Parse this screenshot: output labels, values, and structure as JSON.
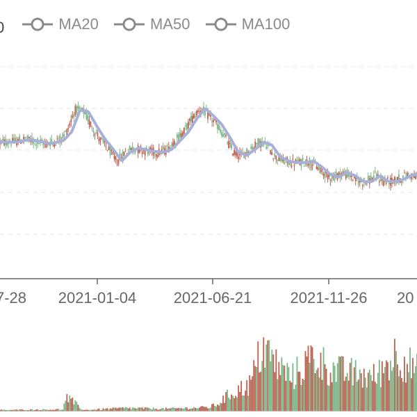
{
  "legend": {
    "partial_label": "0",
    "items": [
      {
        "label": "MA20"
      },
      {
        "label": "MA50"
      },
      {
        "label": "MA100"
      }
    ]
  },
  "colors": {
    "up": "#7ab587",
    "down": "#b9614f",
    "ma_line": "#a7b1d8",
    "grid": "#e6e6e6",
    "axis": "#666666",
    "legend_gray": "#8a8a8a"
  },
  "chart_data": {
    "type": "candlestick",
    "title": "",
    "xlabel": "",
    "ylabel": "",
    "x_tick_labels": [
      "7-28",
      "2021-01-04",
      "2021-06-21",
      "2021-11-26",
      "20"
    ],
    "legend": [
      "MA20",
      "MA50",
      "MA100"
    ],
    "grid": "horizontal dashed",
    "price_series_normalized": {
      "note_units": "relative price level, 0 = low, 1 = high",
      "segment": [
        [
          0,
          0.55
        ],
        [
          0.03,
          0.55
        ],
        [
          0.06,
          0.57
        ],
        [
          0.09,
          0.55
        ],
        [
          0.11,
          0.54
        ],
        [
          0.14,
          0.56
        ],
        [
          0.16,
          0.62
        ],
        [
          0.18,
          0.77
        ],
        [
          0.2,
          0.76
        ],
        [
          0.22,
          0.66
        ],
        [
          0.24,
          0.57
        ],
        [
          0.26,
          0.5
        ],
        [
          0.28,
          0.42
        ],
        [
          0.3,
          0.48
        ],
        [
          0.32,
          0.51
        ],
        [
          0.35,
          0.49
        ],
        [
          0.38,
          0.48
        ],
        [
          0.4,
          0.5
        ],
        [
          0.42,
          0.56
        ],
        [
          0.44,
          0.62
        ],
        [
          0.46,
          0.71
        ],
        [
          0.48,
          0.78
        ],
        [
          0.5,
          0.73
        ],
        [
          0.52,
          0.67
        ],
        [
          0.54,
          0.58
        ],
        [
          0.56,
          0.48
        ],
        [
          0.58,
          0.46
        ],
        [
          0.6,
          0.5
        ],
        [
          0.62,
          0.55
        ],
        [
          0.64,
          0.53
        ],
        [
          0.66,
          0.45
        ],
        [
          0.68,
          0.42
        ],
        [
          0.7,
          0.41
        ],
        [
          0.72,
          0.41
        ],
        [
          0.74,
          0.42
        ],
        [
          0.76,
          0.38
        ],
        [
          0.78,
          0.33
        ],
        [
          0.8,
          0.31
        ],
        [
          0.82,
          0.34
        ],
        [
          0.84,
          0.32
        ],
        [
          0.86,
          0.28
        ],
        [
          0.88,
          0.28
        ],
        [
          0.9,
          0.32
        ],
        [
          0.92,
          0.28
        ],
        [
          0.94,
          0.28
        ],
        [
          0.96,
          0.3
        ],
        [
          0.98,
          0.33
        ],
        [
          1.0,
          0.31
        ]
      ]
    },
    "volume_profile": {
      "note_units": "relative volume level 0-1",
      "segment": [
        [
          0,
          0.02
        ],
        [
          0.15,
          0.03
        ],
        [
          0.16,
          0.2
        ],
        [
          0.18,
          0.12
        ],
        [
          0.2,
          0.02
        ],
        [
          0.3,
          0.05
        ],
        [
          0.4,
          0.04
        ],
        [
          0.5,
          0.06
        ],
        [
          0.52,
          0.1
        ],
        [
          0.55,
          0.25
        ],
        [
          0.6,
          0.4
        ],
        [
          0.63,
          0.95
        ],
        [
          0.66,
          0.7
        ],
        [
          0.7,
          0.5
        ],
        [
          0.75,
          0.8
        ],
        [
          0.8,
          0.6
        ],
        [
          0.85,
          0.55
        ],
        [
          0.9,
          0.5
        ],
        [
          0.95,
          0.85
        ],
        [
          1.0,
          0.6
        ]
      ]
    }
  }
}
